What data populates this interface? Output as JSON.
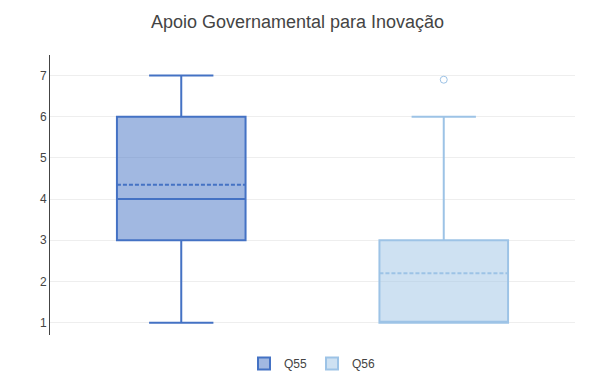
{
  "chart_data": {
    "type": "box",
    "title": "Apoio Governamental para Inovação",
    "series": [
      {
        "name": "Q55",
        "color": "#4472C4",
        "whisker_low": 1,
        "q1": 3,
        "median": 4,
        "q3": 6,
        "whisker_high": 7,
        "mean": 4.35,
        "outliers": []
      },
      {
        "name": "Q56",
        "color": "#9DC3E6",
        "whisker_low": 1,
        "q1": 1,
        "median": 1,
        "q3": 3,
        "whisker_high": 6,
        "mean": 2.2,
        "outliers": [
          6.9
        ]
      }
    ],
    "ylim": [
      0.7,
      7.5
    ],
    "yticks": [
      1,
      2,
      3,
      4,
      5,
      6,
      7
    ],
    "grid": true,
    "legend": "bottom",
    "tick_labels": "y"
  }
}
